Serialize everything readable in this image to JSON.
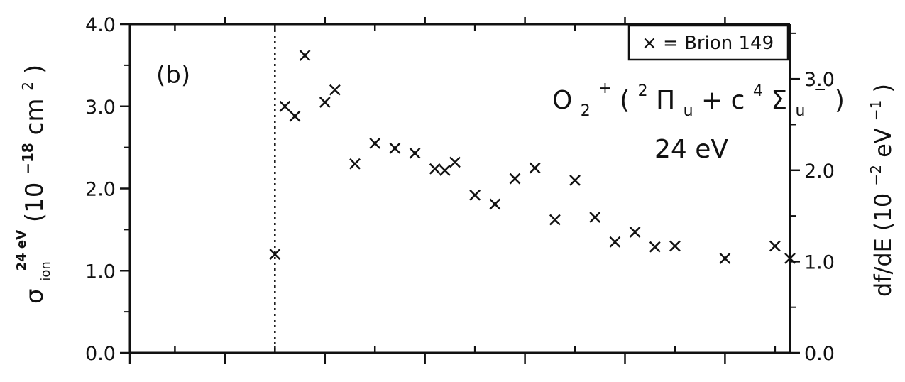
{
  "chart_data": {
    "type": "scatter",
    "panel_label": "(b)",
    "legend_text": "× = Brion 149",
    "annotation": {
      "process_base": "O",
      "process_sub1": "2",
      "process_sup1": "+",
      "process_rest_open": "(",
      "pi_sup": "2",
      "pi_glyph": "Π",
      "pi_sub": "u",
      "plus_c": " + c",
      "sigma_sup": "4",
      "sigma_glyph": "Σ",
      "sigma_sub": "u",
      "sigma_sup2": "−",
      "close": ")",
      "energy": "24 eV"
    },
    "y_left_label": {
      "sigma": "σ",
      "sub": "ion",
      "sup": "24 eV",
      "units_pre": " (10",
      "units_exp": "−18",
      "units_mid": "cm",
      "units_exp2": "2",
      "units_post": ")"
    },
    "y_right_label": {
      "text": "df/dE (10",
      "exp": "−2",
      "mid": " eV",
      "exp2": "−1",
      "post": ")"
    },
    "y_left_ticks": [
      "0.0",
      "1.0",
      "2.0",
      "3.0",
      "4.0"
    ],
    "y_left_range": [
      0,
      4
    ],
    "y_right_ticks": [
      "0.0",
      "1.0",
      "2.0",
      "3.0"
    ],
    "y_right_range": [
      0,
      3.6
    ],
    "threshold_x": 0.0,
    "x_range": [
      -1.45,
      5.15
    ],
    "x_minor_ticks": [
      -1,
      0,
      1,
      2,
      3,
      4,
      5
    ],
    "x_major_ticks": [
      -0.5,
      0.5,
      1.5,
      2.5,
      3.5,
      4.5
    ],
    "grid": false,
    "legend_position": "top-right",
    "series": [
      {
        "marker": "x",
        "x": [
          0.0,
          0.1,
          0.2,
          0.3,
          0.5,
          0.6,
          0.8,
          1.0,
          1.2,
          1.4,
          1.6,
          1.7,
          1.8,
          2.0,
          2.2,
          2.4,
          2.6,
          2.8,
          3.0,
          3.2,
          3.4,
          3.6,
          3.8,
          4.0,
          4.5,
          5.0,
          5.15
        ],
        "y": [
          1.2,
          3.0,
          2.88,
          3.62,
          3.05,
          3.2,
          2.3,
          2.55,
          2.49,
          2.43,
          2.24,
          2.22,
          2.32,
          1.92,
          1.81,
          2.12,
          2.25,
          1.62,
          2.1,
          1.65,
          1.35,
          1.47,
          1.29,
          1.3,
          1.15,
          1.3,
          1.15
        ]
      }
    ]
  }
}
